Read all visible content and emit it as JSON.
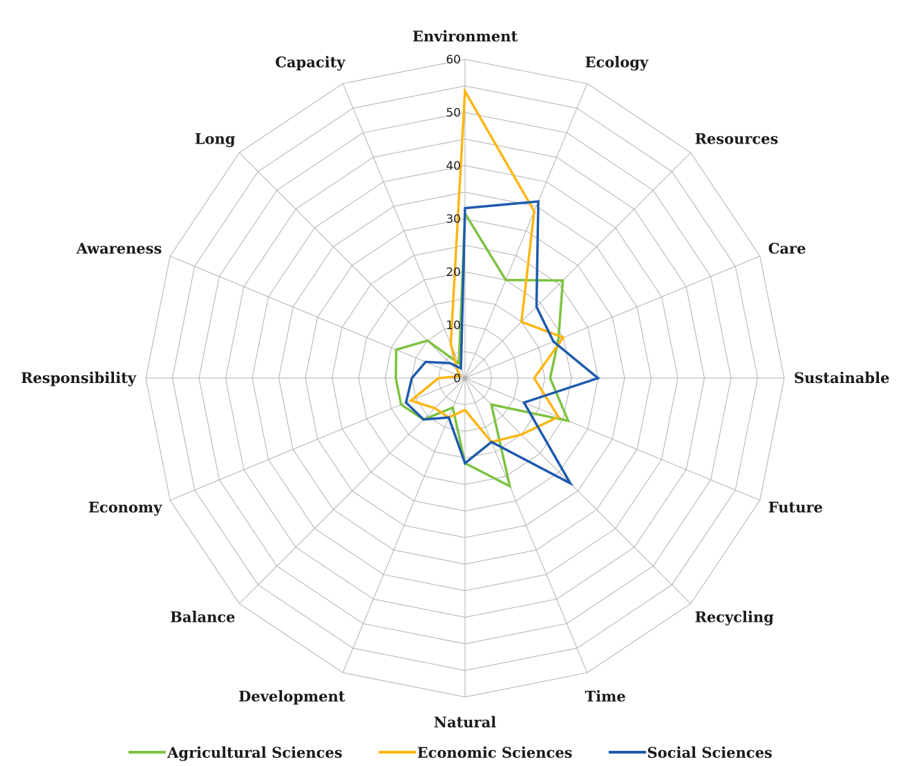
{
  "chart_data": {
    "type": "radar",
    "categories": [
      "Environment",
      "Ecology",
      "Resources",
      "Care",
      "Sustainable",
      "Future",
      "Recycling",
      "Time",
      "Natural",
      "Development",
      "Balance",
      "Economy",
      "Responsibility",
      "Awareness",
      "Long",
      "Capacity"
    ],
    "r_ticks": [
      0,
      10,
      20,
      30,
      40,
      50,
      60
    ],
    "rlim": [
      0,
      60
    ],
    "grid": true,
    "legend_position": "bottom",
    "series": [
      {
        "name": "Agricultural Sciences",
        "color": "#7dc242",
        "values": [
          31,
          20,
          26,
          19,
          16,
          21,
          7,
          22,
          16,
          6,
          11,
          13,
          13,
          14,
          10,
          3
        ]
      },
      {
        "name": "Economic Sciences",
        "color": "#fbb614",
        "values": [
          54,
          34,
          15,
          20,
          13,
          19,
          15,
          13,
          6,
          8,
          8,
          11,
          5,
          1,
          2,
          7
        ]
      },
      {
        "name": "Social Sciences",
        "color": "#1e5aad",
        "values": [
          32,
          36,
          19,
          18,
          25,
          12,
          28,
          13,
          16,
          8,
          11,
          12,
          10,
          8,
          4,
          2
        ]
      }
    ]
  }
}
